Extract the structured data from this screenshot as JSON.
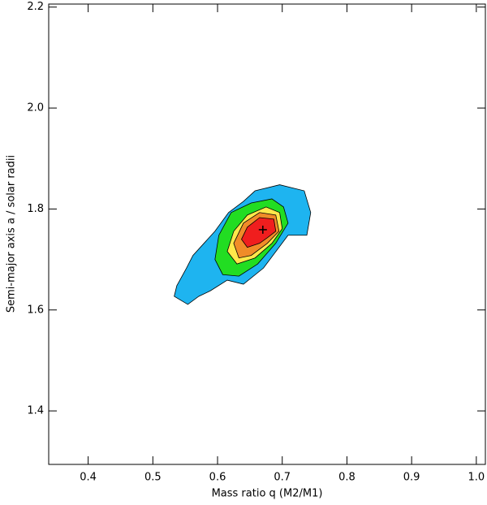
{
  "chart_data": {
    "type": "contour",
    "x_label": "Mass ratio q (M2/M1)",
    "y_label": "Semi-major axis a  / solar radii",
    "xlim": [
      0.339,
      1.014
    ],
    "ylim": [
      1.294,
      2.206
    ],
    "xticks": [
      0.4,
      0.5,
      0.6,
      0.7,
      0.8,
      0.9,
      {
        "value": 1,
        "label": "1.0"
      }
    ],
    "yticks": [
      1.4,
      1.6,
      1.8,
      {
        "value": 2,
        "label": "2.0"
      },
      2.2
    ],
    "series": [
      {
        "color": "#1eb4f0",
        "x": [
          0.537,
          0.552,
          0.562,
          0.579,
          0.596,
          0.617,
          0.64,
          0.658,
          0.696,
          0.734,
          0.744,
          0.738,
          0.709,
          0.671,
          0.64,
          0.615,
          0.589,
          0.571,
          0.554,
          0.533
        ],
        "y": [
          1.648,
          1.683,
          1.708,
          1.732,
          1.756,
          1.793,
          1.815,
          1.836,
          1.848,
          1.836,
          1.793,
          1.748,
          1.748,
          1.683,
          1.651,
          1.659,
          1.638,
          1.627,
          1.611,
          1.627
        ]
      },
      {
        "color": "#22dd22",
        "x": [
          0.596,
          0.602,
          0.621,
          0.652,
          0.684,
          0.702,
          0.709,
          0.69,
          0.662,
          0.633,
          0.608
        ],
        "y": [
          1.7,
          1.748,
          1.793,
          1.812,
          1.82,
          1.804,
          1.772,
          1.732,
          1.691,
          1.667,
          1.67
        ]
      },
      {
        "color": "#ffe84a",
        "x": [
          0.615,
          0.625,
          0.646,
          0.675,
          0.696,
          0.7,
          0.684,
          0.658,
          0.63
        ],
        "y": [
          1.716,
          1.756,
          1.788,
          1.804,
          1.793,
          1.761,
          1.732,
          1.703,
          1.691
        ]
      },
      {
        "color": "#f08c28",
        "x": [
          0.625,
          0.64,
          0.665,
          0.69,
          0.695,
          0.677,
          0.652,
          0.633
        ],
        "y": [
          1.732,
          1.772,
          1.793,
          1.788,
          1.756,
          1.732,
          1.708,
          1.703
        ]
      },
      {
        "color": "#f01e1e",
        "x": [
          0.637,
          0.646,
          0.665,
          0.687,
          0.69,
          0.677,
          0.665,
          0.646
        ],
        "y": [
          1.74,
          1.764,
          1.783,
          1.78,
          1.756,
          1.743,
          1.732,
          1.724
        ]
      }
    ],
    "best_fit": {
      "x": 0.67,
      "y": 1.759
    }
  }
}
